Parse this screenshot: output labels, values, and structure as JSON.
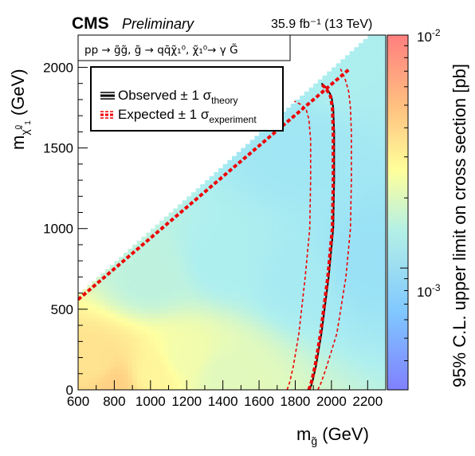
{
  "header": {
    "experiment": "CMS",
    "status": "Preliminary",
    "luminosity": "35.9 fb⁻¹ (13 TeV)"
  },
  "process_label": "pp → g̃g̃, g̃ → qq̄χ̃₁⁰, χ̃₁⁰→ γ G̃",
  "legend": {
    "observed": "Observed ± 1 σtheory",
    "expected": "Expected ± 1 σexperiment"
  },
  "colorbar": {
    "title": "95% C.L. upper limit on cross section [pb]",
    "tick_labels": [
      "10⁻²",
      "10⁻³"
    ]
  },
  "chart_data": {
    "type": "heatmap",
    "xlabel": "m_g̃ (GeV)",
    "ylabel": "m_χ̃₁⁰ (GeV)",
    "zlabel": "95% C.L. upper limit on cross section [pb]",
    "xlim": [
      600,
      2300
    ],
    "ylim": [
      0,
      2200
    ],
    "zlim": [
      0.0003,
      0.01
    ],
    "z_log_scale": true,
    "x_ticks": [
      600,
      800,
      1000,
      1200,
      1400,
      1600,
      1800,
      2000,
      2200
    ],
    "x_tick_labels": [
      "600",
      "800",
      "1000",
      "1200",
      "1400",
      "1600",
      "1800",
      "2000",
      "2200"
    ],
    "y_ticks": [
      0,
      500,
      1000,
      1500,
      2000
    ],
    "y_tick_labels": [
      "0",
      "500",
      "1000",
      "1500",
      "2000"
    ],
    "colormap": [
      "#7f7fff",
      "#7fcfff",
      "#aeefef",
      "#ffffa0",
      "#ffc880",
      "#ff7f7f"
    ],
    "kinematic_boundary": "m_χ̃₁⁰ < m_g̃",
    "limit_samples": [
      {
        "x": 800,
        "y": 50,
        "z": 0.0045
      },
      {
        "x": 700,
        "y": 150,
        "z": 0.0035
      },
      {
        "x": 1000,
        "y": 100,
        "z": 0.0028
      },
      {
        "x": 1200,
        "y": 200,
        "z": 0.0022
      },
      {
        "x": 1400,
        "y": 100,
        "z": 0.0019
      },
      {
        "x": 1000,
        "y": 700,
        "z": 0.0014
      },
      {
        "x": 1400,
        "y": 800,
        "z": 0.0012
      },
      {
        "x": 1800,
        "y": 700,
        "z": 0.0011
      },
      {
        "x": 2200,
        "y": 800,
        "z": 0.0009
      },
      {
        "x": 1800,
        "y": 1500,
        "z": 0.001
      },
      {
        "x": 2000,
        "y": 2000,
        "z": 0.0012
      }
    ],
    "series": [
      {
        "name": "Observed",
        "style": "solid",
        "x": [
          1880,
          1895,
          1915,
          1945,
          1985,
          2010,
          2015,
          2015,
          2010,
          2000,
          1975,
          1945
        ],
        "y": [
          0,
          50,
          150,
          350,
          700,
          1000,
          1300,
          1600,
          1750,
          1820,
          1870,
          1900
        ]
      },
      {
        "name": "Expected",
        "style": "dashed",
        "x": [
          1875,
          1890,
          1910,
          1940,
          1980,
          2005,
          2010,
          2010,
          2005,
          1995,
          1970,
          1940
        ],
        "y": [
          0,
          50,
          150,
          350,
          700,
          1000,
          1300,
          1600,
          1750,
          1820,
          1870,
          1900
        ]
      },
      {
        "name": "Expected +1σ experiment",
        "style": "dashed-thin",
        "x": [
          1755,
          1770,
          1790,
          1820,
          1855,
          1880,
          1885,
          1885,
          1875,
          1860,
          1830,
          1795
        ],
        "y": [
          0,
          50,
          150,
          350,
          700,
          1000,
          1300,
          1550,
          1680,
          1740,
          1770,
          1790
        ]
      },
      {
        "name": "Expected -1σ experiment",
        "style": "dashed-thin",
        "x": [
          1925,
          1945,
          1975,
          2030,
          2080,
          2105,
          2110,
          2110,
          2105,
          2095,
          2075,
          2050
        ],
        "y": [
          0,
          50,
          150,
          350,
          700,
          1000,
          1300,
          1600,
          1750,
          1850,
          1930,
          1990
        ]
      },
      {
        "name": "Diagonal",
        "style": "dashed",
        "x": [
          600,
          2100
        ],
        "y": [
          560,
          1990
        ]
      }
    ]
  }
}
